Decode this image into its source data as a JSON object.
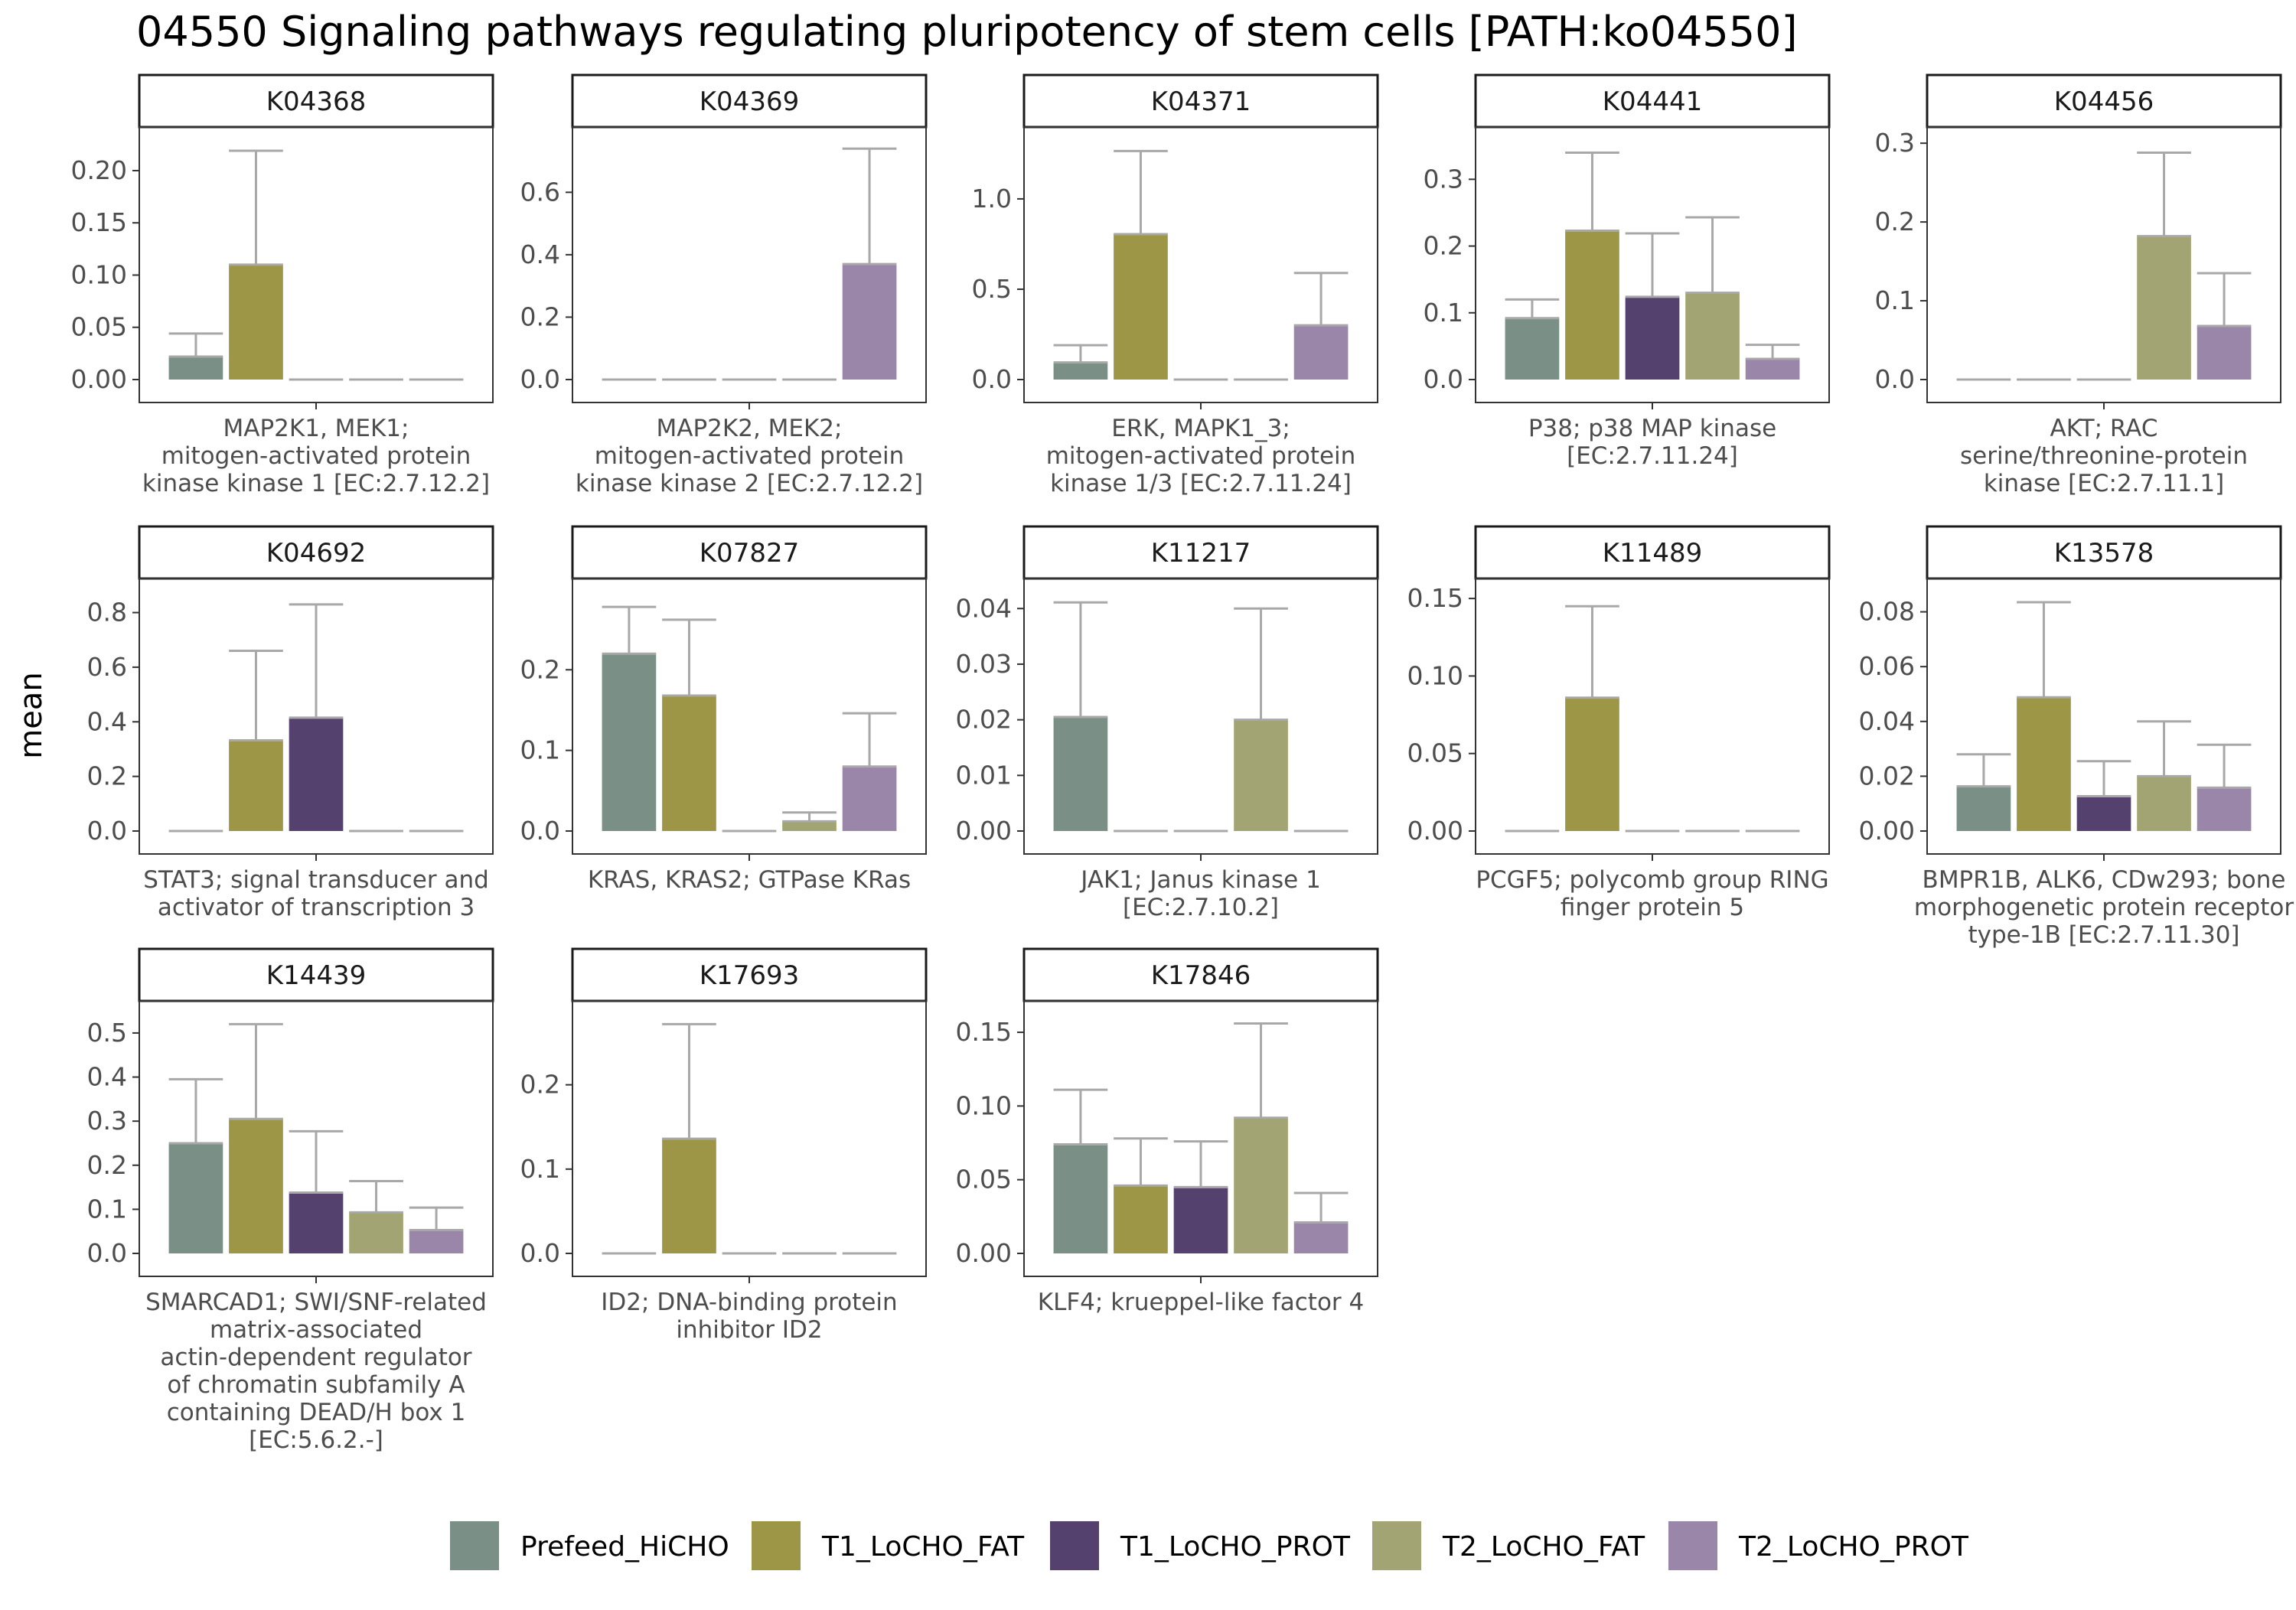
{
  "chart_data": {
    "type": "bar",
    "title": "04550 Signaling pathways regulating pluripotency of stem cells [PATH:ko04550]",
    "ylabel": "mean",
    "xlabel": "",
    "grid": false,
    "legend_position": "bottom",
    "groups": [
      "Prefeed_HiCHO",
      "T1_LoCHO_FAT",
      "T1_LoCHO_PROT",
      "T2_LoCHO_FAT",
      "T2_LoCHO_PROT"
    ],
    "colors": {
      "Prefeed_HiCHO": "#7a8f86",
      "T1_LoCHO_FAT": "#9c9646",
      "T1_LoCHO_PROT": "#55416e",
      "T2_LoCHO_FAT": "#a3a473",
      "T2_LoCHO_PROT": "#9a86a8",
      "errorbar": "#a8a8a8"
    },
    "panels": [
      {
        "id": "K04368",
        "label": [
          "MAP2K1, MEK1;",
          "mitogen-activated protein",
          "kinase kinase 1 [EC:2.7.12.2]"
        ],
        "ylim": [
          0,
          0.23
        ],
        "ticks": [
          "0.00",
          "0.05",
          "0.10",
          "0.15",
          "0.20"
        ],
        "values": [
          0.022,
          0.11,
          0,
          0,
          0
        ],
        "upper": [
          0.044,
          0.219,
          0,
          0,
          0
        ]
      },
      {
        "id": "K04369",
        "label": [
          "MAP2K2, MEK2;",
          "mitogen-activated protein",
          "kinase kinase 2 [EC:2.7.12.2]"
        ],
        "ylim": [
          0,
          0.77
        ],
        "ticks": [
          "0.0",
          "0.2",
          "0.4",
          "0.6"
        ],
        "values": [
          0,
          0,
          0,
          0,
          0.37
        ],
        "upper": [
          0,
          0,
          0,
          0,
          0.74
        ]
      },
      {
        "id": "K04371",
        "label": [
          "ERK, MAPK1_3;",
          "mitogen-activated protein",
          "kinase 1/3 [EC:2.7.11.24]"
        ],
        "ylim": [
          0,
          1.33
        ],
        "ticks": [
          "0.0",
          "0.5",
          "1.0"
        ],
        "values": [
          0.095,
          0.805,
          0,
          0,
          0.3
        ],
        "upper": [
          0.19,
          1.265,
          0,
          0,
          0.59
        ]
      },
      {
        "id": "K04441",
        "label": [
          "P38; p38 MAP kinase",
          "[EC:2.7.11.24]"
        ],
        "ylim": [
          0,
          0.36
        ],
        "ticks": [
          "0.0",
          "0.1",
          "0.2",
          "0.3"
        ],
        "values": [
          0.092,
          0.223,
          0.124,
          0.13,
          0.031
        ],
        "upper": [
          0.12,
          0.34,
          0.219,
          0.243,
          0.052
        ]
      },
      {
        "id": "K04456",
        "label": [
          "AKT; RAC",
          "serine/threonine-protein",
          "kinase [EC:2.7.11.1]"
        ],
        "ylim": [
          0,
          0.305
        ],
        "ticks": [
          "0.0",
          "0.1",
          "0.2",
          "0.3"
        ],
        "values": [
          0,
          0,
          0,
          0.182,
          0.068
        ],
        "upper": [
          0,
          0,
          0,
          0.288,
          0.135
        ]
      },
      {
        "id": "K04692",
        "label": [
          "STAT3; signal transducer and",
          "activator of transcription 3"
        ],
        "ylim": [
          0,
          0.88
        ],
        "ticks": [
          "0.0",
          "0.2",
          "0.4",
          "0.6",
          "0.8"
        ],
        "values": [
          0,
          0.332,
          0.415,
          0,
          0
        ],
        "upper": [
          0,
          0.66,
          0.83,
          0,
          0
        ]
      },
      {
        "id": "K07827",
        "label": [
          "KRAS, KRAS2; GTPase KRas"
        ],
        "ylim": [
          0,
          0.298
        ],
        "ticks": [
          "0.0",
          "0.1",
          "0.2"
        ],
        "values": [
          0.22,
          0.168,
          0,
          0.012,
          0.08
        ],
        "upper": [
          0.278,
          0.262,
          0,
          0.023,
          0.146
        ]
      },
      {
        "id": "K11217",
        "label": [
          "JAK1; Janus kinase 1",
          "[EC:2.7.10.2]"
        ],
        "ylim": [
          0,
          0.0432
        ],
        "ticks": [
          "0.00",
          "0.01",
          "0.02",
          "0.03",
          "0.04"
        ],
        "values": [
          0.0205,
          0,
          0,
          0.02,
          0
        ],
        "upper": [
          0.0411,
          0,
          0,
          0.04,
          0
        ]
      },
      {
        "id": "K11489",
        "label": [
          "PCGF5; polycomb group RING",
          "finger protein 5"
        ],
        "ylim": [
          0,
          0.155
        ],
        "ticks": [
          "0.00",
          "0.05",
          "0.10",
          "0.15"
        ],
        "values": [
          0,
          0.086,
          0,
          0,
          0
        ],
        "upper": [
          0,
          0.145,
          0,
          0,
          0
        ]
      },
      {
        "id": "K13578",
        "label": [
          "BMPR1B, ALK6, CDw293; bone",
          "morphogenetic protein receptor",
          "type-1B [EC:2.7.11.30]"
        ],
        "ylim": [
          0,
          0.0877
        ],
        "ticks": [
          "0.00",
          "0.02",
          "0.04",
          "0.06",
          "0.08"
        ],
        "values": [
          0.0163,
          0.0488,
          0.0127,
          0.02,
          0.0158
        ],
        "upper": [
          0.028,
          0.0835,
          0.0255,
          0.04,
          0.0315
        ]
      },
      {
        "id": "K14439",
        "label": [
          "SMARCAD1; SWI/SNF-related",
          "matrix-associated",
          "actin-dependent regulator",
          "of chromatin subfamily A",
          "containing DEAD/H box 1",
          "[EC:5.6.2.-]"
        ],
        "ylim": [
          0,
          0.545
        ],
        "ticks": [
          "0.0",
          "0.1",
          "0.2",
          "0.3",
          "0.4",
          "0.5"
        ],
        "values": [
          0.25,
          0.305,
          0.138,
          0.093,
          0.053
        ],
        "upper": [
          0.395,
          0.52,
          0.277,
          0.164,
          0.104
        ]
      },
      {
        "id": "K17693",
        "label": [
          "ID2; DNA-binding protein",
          "inhibitor ID2"
        ],
        "ylim": [
          0,
          0.285
        ],
        "ticks": [
          "0.0",
          "0.1",
          "0.2"
        ],
        "values": [
          0,
          0.136,
          0,
          0,
          0
        ],
        "upper": [
          0,
          0.272,
          0,
          0,
          0
        ]
      },
      {
        "id": "K17846",
        "label": [
          "KLF4; krueppel-like factor 4"
        ],
        "ylim": [
          0,
          0.163
        ],
        "ticks": [
          "0.00",
          "0.05",
          "0.10",
          "0.15"
        ],
        "values": [
          0.074,
          0.046,
          0.045,
          0.092,
          0.021
        ],
        "upper": [
          0.111,
          0.078,
          0.076,
          0.156,
          0.041
        ]
      }
    ]
  }
}
